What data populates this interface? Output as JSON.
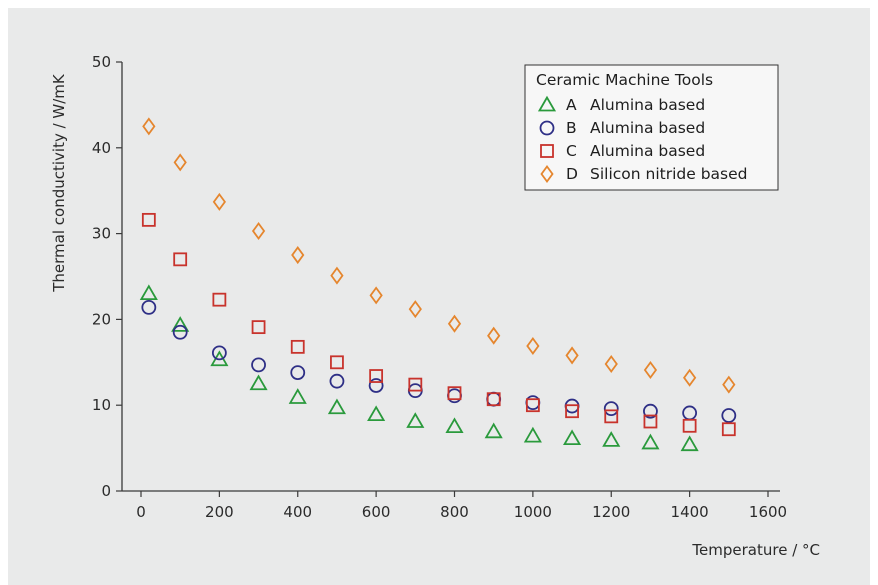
{
  "chart_data": {
    "type": "scatter",
    "xlabel": "Temperature / °C",
    "ylabel": "Thermal conductivity / W/mK",
    "xlim": [
      0,
      1600
    ],
    "ylim": [
      0,
      50
    ],
    "xticks": [
      0,
      200,
      400,
      600,
      800,
      1000,
      1200,
      1400,
      1600
    ],
    "yticks": [
      0,
      10,
      20,
      30,
      40,
      50
    ],
    "grid": false,
    "legend": {
      "title": "Ceramic Machine Tools",
      "placement": "top-right"
    },
    "series": [
      {
        "letter": "A",
        "name": "Alumina based",
        "marker": "triangle",
        "color": "#2a9a3c",
        "x": [
          20,
          100,
          200,
          300,
          400,
          500,
          600,
          700,
          800,
          900,
          1000,
          1100,
          1200,
          1300,
          1400
        ],
        "y": [
          23,
          19.3,
          15.3,
          12.5,
          10.9,
          9.7,
          8.9,
          8.1,
          7.5,
          6.9,
          6.4,
          6.1,
          5.9,
          5.6,
          5.4
        ]
      },
      {
        "letter": "B",
        "name": "Alumina based",
        "marker": "circle",
        "color": "#2e2f86",
        "x": [
          20,
          100,
          200,
          300,
          400,
          500,
          600,
          700,
          800,
          900,
          1000,
          1100,
          1200,
          1300,
          1400,
          1500
        ],
        "y": [
          21.4,
          18.5,
          16.1,
          14.7,
          13.8,
          12.8,
          12.3,
          11.7,
          11.1,
          10.7,
          10.3,
          9.9,
          9.6,
          9.3,
          9.1,
          8.8
        ]
      },
      {
        "letter": "C",
        "name": "Alumina based",
        "marker": "square",
        "color": "#c8332c",
        "x": [
          20,
          100,
          200,
          300,
          400,
          500,
          600,
          700,
          800,
          900,
          1000,
          1100,
          1200,
          1300,
          1400,
          1500
        ],
        "y": [
          31.6,
          27,
          22.3,
          19.1,
          16.8,
          15,
          13.4,
          12.4,
          11.4,
          10.7,
          10,
          9.3,
          8.7,
          8.1,
          7.6,
          7.2
        ]
      },
      {
        "letter": "D",
        "name": "Silicon nitride based",
        "marker": "diamond",
        "color": "#e5862e",
        "x": [
          20,
          100,
          200,
          300,
          400,
          500,
          600,
          700,
          800,
          900,
          1000,
          1100,
          1200,
          1300,
          1400,
          1500
        ],
        "y": [
          42.5,
          38.3,
          33.7,
          30.3,
          27.5,
          25.1,
          22.8,
          21.2,
          19.5,
          18.1,
          16.9,
          15.8,
          14.8,
          14.1,
          13.2,
          12.4
        ]
      }
    ]
  }
}
